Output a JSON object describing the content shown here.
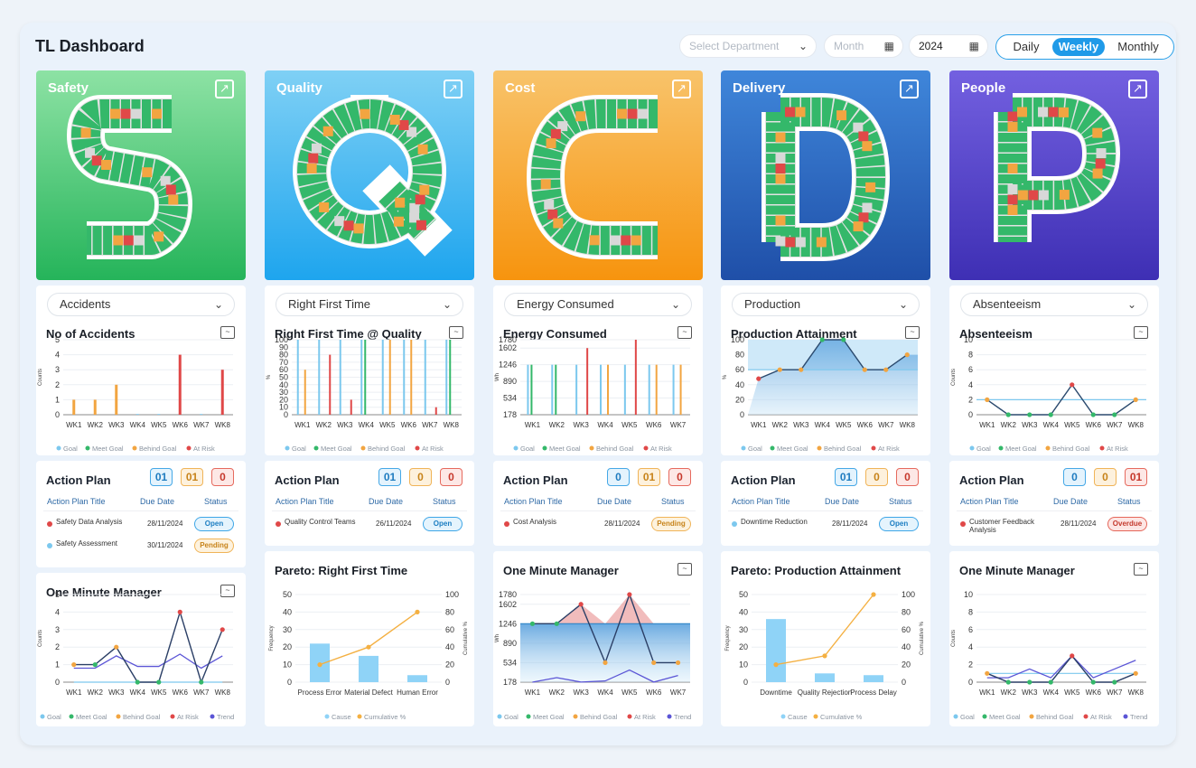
{
  "app": {
    "title": "TL Dashboard"
  },
  "filters": {
    "department_placeholder": "Select Department",
    "month_placeholder": "Month",
    "year_value": "2024",
    "periods": [
      "Daily",
      "Weekly",
      "Monthly"
    ],
    "active_period": "Weekly"
  },
  "legend_labels": {
    "goal": "Goal",
    "meet": "Meet Goal",
    "behind": "Behind Goal",
    "risk": "At Risk",
    "trend": "Trend",
    "cause": "Cause",
    "cumulative": "Cumulative %"
  },
  "colors": {
    "goal": "#7cc8ee",
    "meet": "#34b86a",
    "behind": "#f2a541",
    "risk": "#e04848",
    "trend": "#5b55d6",
    "cause": "#8fd3f7",
    "cumulative": "#f4b042"
  },
  "weeks": [
    "WK1",
    "WK2",
    "WK3",
    "WK4",
    "WK5",
    "WK6",
    "WK7",
    "WK8"
  ],
  "columns": [
    {
      "name": "Safety",
      "letter": "S",
      "gradient": [
        "#8de2a4",
        "#25b45a"
      ],
      "dropdown": "Accidents",
      "kpi_chart": {
        "title": "No of Accidents",
        "type": "bar",
        "ylabel": "Counts",
        "yticks": [
          "0",
          "1",
          "2",
          "3",
          "4",
          "5"
        ],
        "ymin": 0,
        "ymax": 5,
        "series": [
          {
            "status": "behind",
            "values": [
              1,
              1,
              2,
              0,
              0,
              0,
              0,
              0
            ]
          },
          {
            "status": "risk",
            "values": [
              0,
              0,
              0,
              0,
              0,
              4,
              0,
              3
            ]
          },
          {
            "status": "goal",
            "values": [
              0,
              0,
              0,
              0.05,
              0.05,
              0,
              0.05,
              0
            ]
          }
        ]
      },
      "action_plan": {
        "title": "Action Plan",
        "counts": [
          "01",
          "01",
          "0"
        ],
        "headers": [
          "Action Plan Title",
          "Due Date",
          "Status"
        ],
        "rows": [
          {
            "title": "Safety Data Analysis",
            "due": "28/11/2024",
            "status": "Open",
            "dot": "risk"
          },
          {
            "title": "Safety Assessment",
            "due": "30/11/2024",
            "status": "Pending",
            "dot": "goal"
          }
        ]
      },
      "bottom_chart": {
        "title": "One Minute Manager",
        "type": "omm",
        "ylabel": "Counts",
        "yticks": [
          "0",
          "1",
          "2",
          "3",
          "4",
          "5"
        ],
        "ymin": 0,
        "ymax": 5,
        "actual": [
          1,
          1,
          2,
          0,
          0,
          4,
          0,
          3
        ],
        "status": [
          "behind",
          "meet",
          "behind",
          "meet",
          "meet",
          "risk",
          "meet",
          "risk"
        ],
        "goal": [
          0,
          0,
          0,
          0,
          0,
          0,
          0,
          0
        ],
        "trend": [
          0.8,
          0.8,
          1.5,
          0.9,
          0.9,
          1.6,
          0.8,
          1.5
        ]
      }
    },
    {
      "name": "Quality",
      "letter": "Q",
      "gradient": [
        "#7fd0f5",
        "#1ea5ee"
      ],
      "dropdown": "Right First Time",
      "kpi_chart": {
        "title": "Right First Time @ Quality",
        "type": "multibar",
        "ylabel": "%",
        "yticks": [
          "0",
          "10",
          "20",
          "30",
          "40",
          "50",
          "60",
          "70",
          "80",
          "90",
          "100"
        ],
        "ymin": 0,
        "ymax": 100,
        "groups": [
          [
            100,
            0,
            60,
            0
          ],
          [
            100,
            0,
            0,
            80
          ],
          [
            100,
            0,
            0,
            20
          ],
          [
            100,
            100,
            0,
            0
          ],
          [
            100,
            0,
            100,
            0
          ],
          [
            100,
            0,
            100,
            0
          ],
          [
            100,
            0,
            0,
            10
          ],
          [
            100,
            100,
            0,
            0
          ]
        ]
      },
      "action_plan": {
        "title": "Action Plan",
        "counts": [
          "01",
          "0",
          "0"
        ],
        "headers": [
          "Action Plan Title",
          "Due Date",
          "Status"
        ],
        "rows": [
          {
            "title": "Quality Control Teams",
            "due": "26/11/2024",
            "status": "Open",
            "dot": "risk"
          }
        ]
      },
      "bottom_chart": {
        "title": "Pareto: Right First Time",
        "type": "pareto",
        "ylabel": "Frequency",
        "ylabel2": "Cumulative %",
        "yticks": [
          "0",
          "10",
          "20",
          "30",
          "40",
          "50"
        ],
        "yticks2": [
          "0",
          "20",
          "40",
          "60",
          "80",
          "100"
        ],
        "ymax": 50,
        "categories": [
          "Process Error",
          "Material Defect",
          "Human Error"
        ],
        "values": [
          22,
          15,
          4
        ],
        "cumulative": [
          20,
          40,
          80
        ]
      }
    },
    {
      "name": "Cost",
      "letter": "C",
      "gradient": [
        "#f8c36a",
        "#f7940e"
      ],
      "dropdown": "Energy Consumed",
      "kpi_chart": {
        "title": "Energy Consumed",
        "type": "multibar",
        "ylabel": "Wh",
        "yticks": [
          "178",
          "534",
          "890",
          "1246",
          "1602",
          "1780"
        ],
        "ytickvals": [
          178,
          534,
          890,
          1246,
          1602,
          1780
        ],
        "ymin": 178,
        "ymax": 1780,
        "ncats": 7,
        "groups": [
          [
            1246,
            1246,
            0,
            0
          ],
          [
            1246,
            1246,
            0,
            0
          ],
          [
            1246,
            0,
            0,
            1602
          ],
          [
            1246,
            0,
            1246,
            0
          ],
          [
            1246,
            0,
            0,
            1780
          ],
          [
            1246,
            0,
            1246,
            0
          ],
          [
            1246,
            0,
            1246,
            0
          ]
        ]
      },
      "action_plan": {
        "title": "Action Plan",
        "counts": [
          "0",
          "01",
          "0"
        ],
        "headers": [
          "Action Plan Title",
          "Due Date",
          "Status"
        ],
        "rows": [
          {
            "title": "Cost Analysis",
            "due": "28/11/2024",
            "status": "Pending",
            "dot": "risk"
          }
        ]
      },
      "bottom_chart": {
        "title": "One Minute Manager",
        "type": "energy",
        "ylabel": "Wh",
        "yticks": [
          "178",
          "534",
          "890",
          "1246",
          "1602",
          "1780"
        ],
        "ytickvals": [
          178,
          534,
          890,
          1246,
          1602,
          1780
        ],
        "ymin": 178,
        "ymax": 1780,
        "categories": [
          "WK1",
          "WK2",
          "WK3",
          "WK4",
          "WK5",
          "WK6",
          "WK7"
        ],
        "actual": [
          1246,
          1246,
          1602,
          534,
          1780,
          534,
          534
        ],
        "status": [
          "meet",
          "meet",
          "risk",
          "behind",
          "risk",
          "behind",
          "behind"
        ],
        "goal": 1246,
        "trend": [
          178,
          260,
          180,
          200,
          400,
          180,
          300
        ]
      }
    },
    {
      "name": "Delivery",
      "letter": "D",
      "gradient": [
        "#3f86da",
        "#1f4fa8"
      ],
      "dropdown": "Production",
      "kpi_chart": {
        "title": "Production Attainment",
        "type": "area",
        "ylabel": "%",
        "yticks": [
          "0",
          "20",
          "40",
          "60",
          "80",
          "100"
        ],
        "ymin": 0,
        "ymax": 100,
        "actual": [
          48,
          60,
          60,
          100,
          100,
          60,
          60,
          80
        ],
        "status": [
          "risk",
          "behind",
          "behind",
          "meet",
          "meet",
          "behind",
          "behind",
          "behind"
        ],
        "goal": 60
      },
      "action_plan": {
        "title": "Action Plan",
        "counts": [
          "01",
          "0",
          "0"
        ],
        "headers": [
          "Action Plan Title",
          "Due Date",
          "Status"
        ],
        "rows": [
          {
            "title": "Downtime Reduction",
            "due": "28/11/2024",
            "status": "Open",
            "dot": "goal"
          }
        ]
      },
      "bottom_chart": {
        "title": "Pareto: Production Attainment",
        "type": "pareto",
        "ylabel": "Frequency",
        "ylabel2": "Cumulative %",
        "yticks": [
          "0",
          "10",
          "20",
          "30",
          "40",
          "50"
        ],
        "yticks2": [
          "0",
          "20",
          "40",
          "60",
          "80",
          "100"
        ],
        "ymax": 50,
        "categories": [
          "Downtime",
          "Quality Rejection",
          "Process Delay"
        ],
        "values": [
          36,
          5,
          4
        ],
        "cumulative": [
          20,
          30,
          100
        ]
      }
    },
    {
      "name": "People",
      "letter": "P",
      "gradient": [
        "#7360e0",
        "#3e2fb4"
      ],
      "dropdown": "Absenteeism",
      "kpi_chart": {
        "title": "Absenteeism",
        "type": "line",
        "ylabel": "Counts",
        "yticks": [
          "0",
          "2",
          "4",
          "6",
          "8",
          "10"
        ],
        "ymin": 0,
        "ymax": 10,
        "actual": [
          2,
          0,
          0,
          0,
          4,
          0,
          0,
          2
        ],
        "status": [
          "behind",
          "meet",
          "meet",
          "meet",
          "risk",
          "meet",
          "meet",
          "behind"
        ],
        "goal": 2
      },
      "action_plan": {
        "title": "Action Plan",
        "counts": [
          "0",
          "0",
          "01"
        ],
        "headers": [
          "Action Plan Title",
          "Due Date",
          "Status"
        ],
        "rows": [
          {
            "title": "Customer Feedback Analysis",
            "due": "28/11/2024",
            "status": "Overdue",
            "dot": "risk"
          }
        ]
      },
      "bottom_chart": {
        "title": "One Minute Manager",
        "type": "omm",
        "ylabel": "Counts",
        "yticks": [
          "0",
          "2",
          "4",
          "6",
          "8",
          "10"
        ],
        "ymin": 0,
        "ymax": 10,
        "actual": [
          1,
          0,
          0,
          0,
          3,
          0,
          0,
          1
        ],
        "status": [
          "behind",
          "meet",
          "meet",
          "meet",
          "risk",
          "meet",
          "meet",
          "behind"
        ],
        "goal": [
          1,
          1,
          1,
          1,
          1,
          1,
          1,
          1
        ],
        "trend": [
          0.5,
          0.5,
          1.5,
          0.5,
          3,
          0.5,
          1.5,
          2.5
        ]
      }
    }
  ]
}
